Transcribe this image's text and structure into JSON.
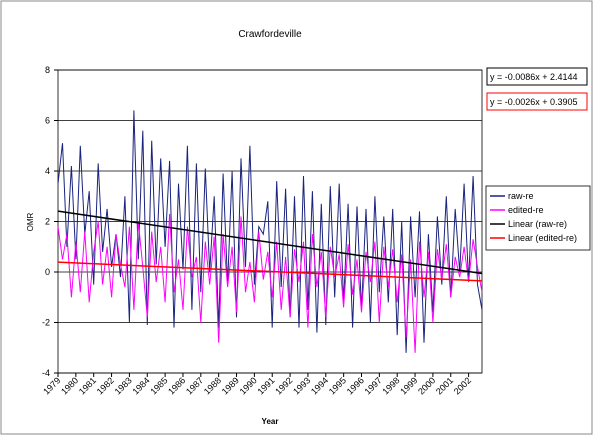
{
  "chart_data": {
    "type": "line",
    "title": "Crawfordeville",
    "xlabel": "Year",
    "ylabel": "OMR",
    "categories": [
      "1979",
      null,
      null,
      null,
      "1980",
      null,
      null,
      null,
      "1981",
      null,
      null,
      null,
      "1982",
      null,
      null,
      null,
      "1983",
      null,
      null,
      null,
      "1984",
      null,
      null,
      null,
      "1985",
      null,
      null,
      null,
      "1986",
      null,
      null,
      null,
      "1987",
      null,
      null,
      null,
      "1988",
      null,
      null,
      null,
      "1989",
      null,
      null,
      null,
      "1990",
      null,
      null,
      null,
      "1991",
      null,
      null,
      null,
      "1992",
      null,
      null,
      null,
      "1993",
      null,
      null,
      null,
      "1994",
      null,
      null,
      null,
      "1995",
      null,
      null,
      null,
      "1996",
      null,
      null,
      null,
      "1997",
      null,
      null,
      null,
      "1998",
      null,
      null,
      null,
      "1999",
      null,
      null,
      null,
      "2000",
      null,
      null,
      null,
      "2001",
      null,
      null,
      null,
      "2002",
      null,
      null,
      null
    ],
    "series": [
      {
        "name": "raw-re",
        "color": "#1a237e",
        "values": [
          3.5,
          5.1,
          1.0,
          4.2,
          0.5,
          5.0,
          1.5,
          3.2,
          -0.5,
          4.3,
          0.8,
          2.5,
          0.2,
          1.5,
          -0.2,
          3.0,
          -2.0,
          6.4,
          0.5,
          5.6,
          -2.1,
          5.2,
          0.3,
          4.5,
          1.0,
          4.4,
          -2.2,
          3.5,
          0.1,
          5.0,
          -1.5,
          4.3,
          -0.8,
          4.1,
          0.0,
          3.0,
          -2.2,
          3.9,
          -0.5,
          4.0,
          -1.8,
          4.5,
          0.2,
          5.0,
          -0.5,
          1.8,
          1.5,
          2.8,
          -2.2,
          3.6,
          -0.6,
          3.3,
          -1.8,
          3.0,
          -2.2,
          3.8,
          -1.5,
          3.2,
          -2.4,
          2.7,
          -2.1,
          3.4,
          -1.0,
          3.5,
          -1.2,
          2.7,
          -2.2,
          2.6,
          -1.5,
          2.5,
          -2.0,
          3.0,
          -0.8,
          2.2,
          -1.2,
          2.5,
          -2.5,
          2.0,
          -3.2,
          2.2,
          -1.0,
          2.4,
          -2.8,
          1.5,
          -1.6,
          2.2,
          -0.5,
          3.0,
          -1.0,
          2.5,
          0.0,
          3.5,
          -0.4,
          3.8,
          -0.5,
          -1.5
        ]
      },
      {
        "name": "edited-re",
        "color": "#ff00ff",
        "values": [
          1.8,
          0.5,
          1.5,
          -1.0,
          1.2,
          -0.8,
          1.6,
          -1.2,
          0.8,
          2.0,
          -0.5,
          1.0,
          -1.0,
          1.5,
          0.3,
          -0.6,
          1.8,
          -1.5,
          2.0,
          0.2,
          -1.8,
          1.6,
          -0.4,
          1.0,
          -1.2,
          2.3,
          -0.8,
          0.5,
          -1.5,
          1.8,
          -0.2,
          0.6,
          -2.0,
          1.2,
          -0.5,
          1.4,
          -2.8,
          1.5,
          -0.6,
          1.0,
          -1.6,
          2.2,
          -0.8,
          0.4,
          -1.2,
          1.6,
          -0.3,
          0.8,
          -1.0,
          1.2,
          -1.5,
          0.6,
          -1.8,
          0.9,
          -0.4,
          1.2,
          -2.2,
          1.5,
          -0.6,
          0.8,
          -1.8,
          1.0,
          -0.2,
          0.7,
          -1.4,
          1.1,
          -0.9,
          0.5,
          -1.6,
          0.8,
          -0.4,
          1.2,
          -2.0,
          1.0,
          -0.6,
          0.9,
          -1.2,
          0.7,
          -2.6,
          0.5,
          -3.2,
          1.2,
          -1.0,
          0.8,
          -2.0,
          0.9,
          -0.3,
          1.1,
          -1.0,
          0.6,
          -0.2,
          1.0,
          -0.4,
          1.3,
          0.2,
          -0.8
        ]
      }
    ],
    "trendlines": [
      {
        "name": "Linear (raw-re)",
        "color": "#000000",
        "values": [
          2.41,
          -0.06
        ],
        "equation": "y = -0.0086x + 2.4144"
      },
      {
        "name": "Linear (edited-re)",
        "color": "#ff0000",
        "values": [
          0.39,
          -0.35
        ],
        "equation": "y = -0.0026x + 0.3905"
      }
    ],
    "ylim": [
      -4,
      8
    ],
    "yticks": [
      -4,
      -2,
      0,
      2,
      4,
      6,
      8
    ],
    "grid": true
  }
}
